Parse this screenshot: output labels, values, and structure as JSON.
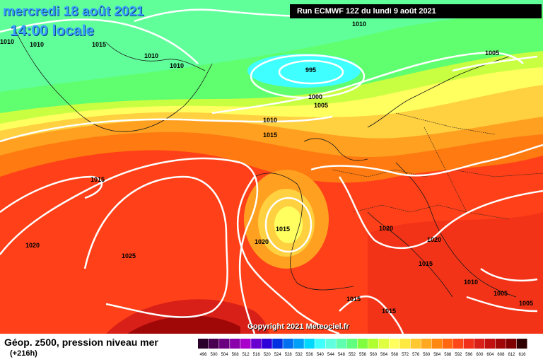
{
  "header": {
    "date": "mercredi 18 août 2021",
    "time": "14:00 locale",
    "run": "Run ECMWF 12Z du lundi 9 août 2021"
  },
  "footer": {
    "title": "Géop. z500, pression niveau mer",
    "lead": "(+216h)",
    "copyright": "Copyright 2021 Meteociel.fr"
  },
  "isobar_labels": [
    "1010",
    "1010",
    "1015",
    "1010",
    "1010",
    "1010",
    "995",
    "1000",
    "1005",
    "1005",
    "1010",
    "1015",
    "1015",
    "1015",
    "1020",
    "1020",
    "1020",
    "1025",
    "1020",
    "1015",
    "1010",
    "1005",
    "1005",
    "1015",
    "1015",
    "1005"
  ],
  "legend": {
    "values": [
      "496",
      "500",
      "504",
      "508",
      "512",
      "516",
      "520",
      "524",
      "528",
      "532",
      "536",
      "540",
      "544",
      "548",
      "552",
      "556",
      "560",
      "564",
      "568",
      "572",
      "576",
      "580",
      "584",
      "588",
      "592",
      "596",
      "600",
      "604",
      "608",
      "612",
      "616"
    ],
    "colors": [
      "#2a002a",
      "#4a0050",
      "#6a0080",
      "#8a00aa",
      "#aa00cc",
      "#6a00d0",
      "#3000d8",
      "#0030e0",
      "#0070f0",
      "#00a0f8",
      "#00d8ff",
      "#40ffff",
      "#60ffe0",
      "#60ffb0",
      "#60ff80",
      "#80ff40",
      "#b0ff30",
      "#e0ff40",
      "#ffff60",
      "#ffe840",
      "#ffc830",
      "#ffa820",
      "#ff8810",
      "#ff6810",
      "#ff4818",
      "#f03018",
      "#d82018",
      "#c01010",
      "#a00808",
      "#800000",
      "#300000"
    ]
  }
}
